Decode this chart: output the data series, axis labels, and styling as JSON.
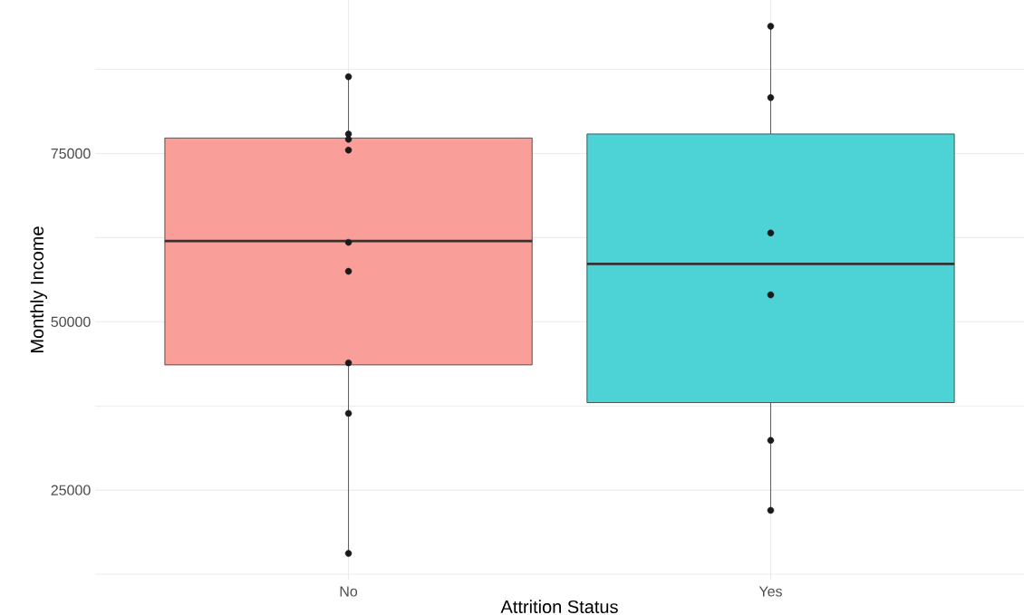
{
  "chart_data": {
    "type": "box",
    "xlabel": "Attrition Status",
    "ylabel": "Monthly Income",
    "categories": [
      "No",
      "Yes"
    ],
    "grid": true,
    "marker": "circle",
    "ylim": [
      11700,
      97800
    ],
    "yticks": [
      {
        "value": 12500,
        "label": null
      },
      25000,
      {
        "value": 37500,
        "label": null
      },
      50000,
      {
        "value": 62500,
        "label": null
      },
      75000,
      {
        "value": 87500,
        "label": null
      }
    ],
    "series": [
      {
        "colors": [
          "#f99e98",
          "#4dd2d6"
        ],
        "boxes": [
          {
            "low": 16000,
            "q1": 43600,
            "median": 62000,
            "q3": 77300,
            "high": 86700
          },
          {
            "low": 22100,
            "q1": 38000,
            "median": 58600,
            "q3": 77900,
            "high": 93600
          }
        ]
      },
      {
        "type": "scatter",
        "color": "#1a1a1a",
        "x": [
          "No",
          "No",
          "No",
          "No",
          "No",
          "No",
          "No",
          "No",
          "No",
          "Yes",
          "Yes",
          "Yes",
          "Yes",
          "Yes",
          "Yes"
        ],
        "values": [
          86400,
          77900,
          77100,
          75500,
          61800,
          57500,
          43900,
          36400,
          15600,
          93900,
          83300,
          63200,
          54000,
          32400,
          22000
        ]
      }
    ]
  }
}
